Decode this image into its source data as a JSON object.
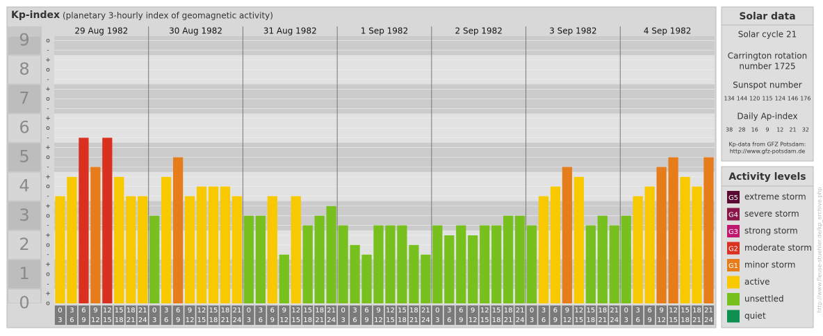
{
  "chart_data": {
    "type": "bar",
    "title": "Kp-index",
    "subtitle": "(planetary 3-hourly index of geomagnetic activity)",
    "ylim": [
      0,
      9.15
    ],
    "yticks": [
      0,
      1,
      2,
      3,
      4,
      5,
      6,
      7,
      8,
      9
    ],
    "minor_yticks": [
      {
        "value": 0,
        "label": "o"
      },
      {
        "value": 0.33,
        "label": "+"
      },
      {
        "value": 0.67,
        "label": "-"
      },
      {
        "value": 1,
        "label": "o"
      },
      {
        "value": 1.33,
        "label": "+"
      },
      {
        "value": 1.67,
        "label": "-"
      },
      {
        "value": 2,
        "label": "o"
      },
      {
        "value": 2.33,
        "label": "+"
      },
      {
        "value": 2.67,
        "label": "-"
      },
      {
        "value": 3,
        "label": "o"
      },
      {
        "value": 3.33,
        "label": "+"
      },
      {
        "value": 3.67,
        "label": "-"
      },
      {
        "value": 4,
        "label": "o"
      },
      {
        "value": 4.33,
        "label": "+"
      },
      {
        "value": 4.67,
        "label": "-"
      },
      {
        "value": 5,
        "label": "o"
      },
      {
        "value": 5.33,
        "label": "+"
      },
      {
        "value": 5.67,
        "label": "-"
      },
      {
        "value": 6,
        "label": "o"
      },
      {
        "value": 6.33,
        "label": "+"
      },
      {
        "value": 6.67,
        "label": "-"
      },
      {
        "value": 7,
        "label": "o"
      },
      {
        "value": 7.33,
        "label": "+"
      },
      {
        "value": 7.67,
        "label": "-"
      },
      {
        "value": 8,
        "label": "o"
      },
      {
        "value": 8.33,
        "label": "+"
      },
      {
        "value": 8.67,
        "label": "-"
      },
      {
        "value": 9,
        "label": "o"
      }
    ],
    "grid": true,
    "intervals": [
      [
        "0",
        "3"
      ],
      [
        "3",
        "6"
      ],
      [
        "6",
        "9"
      ],
      [
        "9",
        "12"
      ],
      [
        "12",
        "15"
      ],
      [
        "15",
        "18"
      ],
      [
        "18",
        "21"
      ],
      [
        "21",
        "24"
      ]
    ],
    "days": [
      {
        "date": "29 Aug 1982",
        "values": [
          3.67,
          4.33,
          5.67,
          4.67,
          5.67,
          4.33,
          3.67,
          3.67
        ],
        "colors": [
          "#f8c800",
          "#f8c800",
          "#d93020",
          "#e67c1a",
          "#d93020",
          "#f8c800",
          "#f8c800",
          "#f8c800"
        ]
      },
      {
        "date": "30 Aug 1982",
        "values": [
          3,
          4.33,
          5,
          3.67,
          4,
          4,
          4,
          3.67
        ],
        "colors": [
          "#77c01e",
          "#f8c800",
          "#e67c1a",
          "#f8c800",
          "#f8c800",
          "#f8c800",
          "#f8c800",
          "#f8c800"
        ]
      },
      {
        "date": "31 Aug 1982",
        "values": [
          3,
          3,
          3.67,
          1.67,
          3.67,
          2.67,
          3,
          3.33
        ],
        "colors": [
          "#77c01e",
          "#77c01e",
          "#f8c800",
          "#77c01e",
          "#f8c800",
          "#77c01e",
          "#77c01e",
          "#77c01e"
        ]
      },
      {
        "date": "1 Sep 1982",
        "values": [
          2.67,
          2,
          1.67,
          2.67,
          2.67,
          2.67,
          2,
          1.67
        ],
        "colors": [
          "#77c01e",
          "#77c01e",
          "#77c01e",
          "#77c01e",
          "#77c01e",
          "#77c01e",
          "#77c01e",
          "#77c01e"
        ]
      },
      {
        "date": "2 Sep 1982",
        "values": [
          2.67,
          2.33,
          2.67,
          2.33,
          2.67,
          2.67,
          3,
          3
        ],
        "colors": [
          "#77c01e",
          "#77c01e",
          "#77c01e",
          "#77c01e",
          "#77c01e",
          "#77c01e",
          "#77c01e",
          "#77c01e"
        ]
      },
      {
        "date": "3 Sep 1982",
        "values": [
          2.67,
          3.67,
          4,
          4.67,
          4.33,
          2.67,
          3,
          2.67
        ],
        "colors": [
          "#77c01e",
          "#f8c800",
          "#f8c800",
          "#e67c1a",
          "#f8c800",
          "#77c01e",
          "#77c01e",
          "#77c01e"
        ]
      },
      {
        "date": "4 Sep 1982",
        "values": [
          3,
          3.67,
          4,
          4.67,
          5,
          4.33,
          4,
          5
        ],
        "colors": [
          "#77c01e",
          "#f8c800",
          "#f8c800",
          "#e67c1a",
          "#e67c1a",
          "#f8c800",
          "#f8c800",
          "#e67c1a"
        ]
      }
    ]
  },
  "solar": {
    "title": "Solar data",
    "cycle": "Solar cycle 21",
    "carrington": [
      "Carrington rotation",
      "number 1725"
    ],
    "sunspot_title": "Sunspot number",
    "sunspot": [
      134,
      144,
      120,
      115,
      124,
      146,
      176
    ],
    "ap_title": "Daily Ap-index",
    "ap": [
      38,
      28,
      16,
      9,
      12,
      21,
      32
    ],
    "source": [
      "Kp-data from GFZ Potsdam:",
      "http://www.gfz-potsdam.de"
    ]
  },
  "legend": {
    "title": "Activity levels",
    "items": [
      {
        "code": "G5",
        "label": "extreme storm",
        "color": "#5a0a32"
      },
      {
        "code": "G4",
        "label": "severe storm",
        "color": "#8a1448"
      },
      {
        "code": "G3",
        "label": "strong storm",
        "color": "#c0186e"
      },
      {
        "code": "G2",
        "label": "moderate storm",
        "color": "#d93020"
      },
      {
        "code": "G1",
        "label": "minor storm",
        "color": "#e67c1a"
      },
      {
        "label": "active",
        "color": "#f8c800"
      },
      {
        "label": "unsettled",
        "color": "#77c01e"
      },
      {
        "label": "quiet",
        "color": "#109050"
      }
    ]
  },
  "side_note": "http://www.fleuse-stuehler.de/kp_archive.php"
}
